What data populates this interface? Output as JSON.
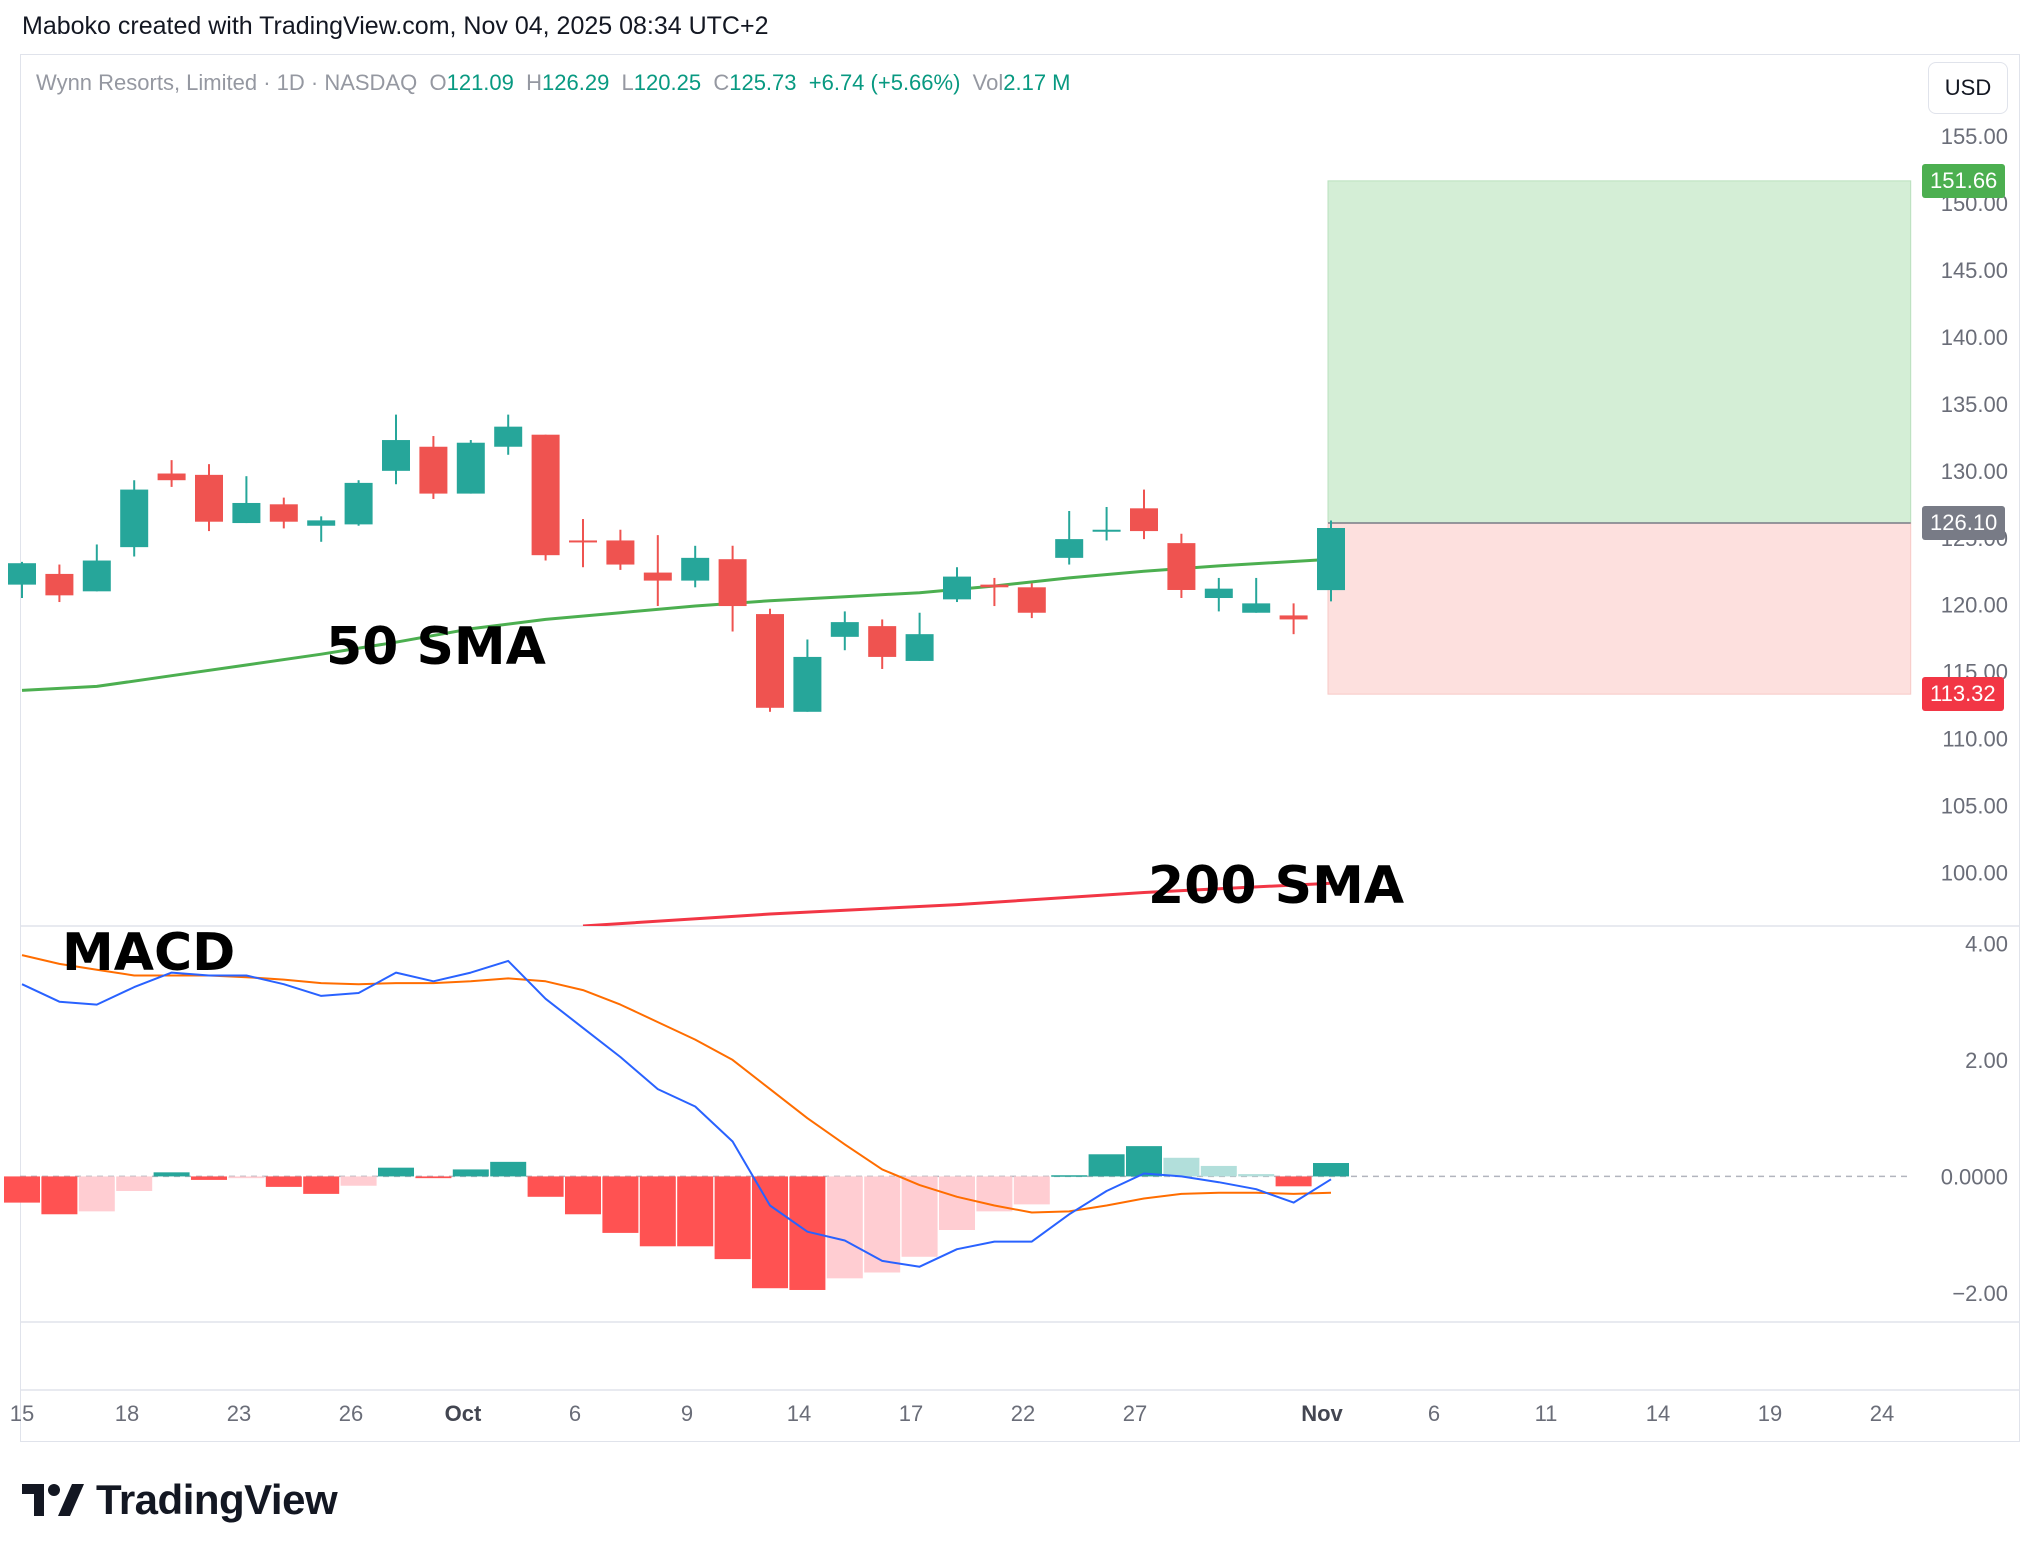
{
  "header": {
    "credit": "Maboko created with TradingView.com, Nov 04, 2025 08:34 UTC+2"
  },
  "legend": {
    "symbol": "Wynn Resorts, Limited · 1D · NASDAQ",
    "open_label": "O",
    "open": "121.09",
    "high_label": "H",
    "high": "126.29",
    "low_label": "L",
    "low": "120.25",
    "close_label": "C",
    "close": "125.73",
    "change": "+6.74 (+5.66%)",
    "vol_label": "Vol",
    "volume": "2.17 M"
  },
  "currency": "USD",
  "badges": {
    "target": "151.66",
    "current": "126.10",
    "stop": "113.32"
  },
  "annotations": {
    "sma50": "50 SMA",
    "sma200": "200 SMA",
    "macd": "MACD"
  },
  "brand": "TradingView",
  "colors": {
    "up": "#26a69a",
    "down": "#ef5350",
    "sma50": "#4caf50",
    "sma200": "#f23645",
    "macd_line": "#2962ff",
    "signal_line": "#ff6d00",
    "hist_up_strong": "#26a69a",
    "hist_up_weak": "#b2dfdb",
    "hist_down_strong": "#ff5252",
    "hist_down_weak": "#ffcdd2",
    "target_zone": "#d4eed6",
    "stop_zone": "#fde0de"
  },
  "chart_data": [
    {
      "type": "candlestick",
      "name": "price",
      "ylim": [
        96,
        158
      ],
      "y_ticks": [
        "155.00",
        "150.00",
        "145.00",
        "140.00",
        "135.00",
        "130.00",
        "125.00",
        "120.00",
        "115.00",
        "110.00",
        "105.00",
        "100.00"
      ],
      "x_ticks": [
        "15",
        "18",
        "23",
        "26",
        "Oct",
        "6",
        "9",
        "14",
        "17",
        "22",
        "27",
        "Nov",
        "6",
        "11",
        "14",
        "19",
        "24"
      ],
      "candles": [
        {
          "o": 121.5,
          "h": 123.2,
          "l": 120.5,
          "c": 123.1
        },
        {
          "o": 122.3,
          "h": 123.0,
          "l": 120.2,
          "c": 120.7
        },
        {
          "o": 121.0,
          "h": 124.5,
          "l": 121.0,
          "c": 123.3
        },
        {
          "o": 124.3,
          "h": 129.3,
          "l": 123.6,
          "c": 128.6
        },
        {
          "o": 129.8,
          "h": 130.8,
          "l": 128.8,
          "c": 129.3
        },
        {
          "o": 129.7,
          "h": 130.5,
          "l": 125.5,
          "c": 126.2
        },
        {
          "o": 126.1,
          "h": 129.6,
          "l": 126.1,
          "c": 127.6
        },
        {
          "o": 127.5,
          "h": 128.0,
          "l": 125.7,
          "c": 126.2
        },
        {
          "o": 125.9,
          "h": 126.6,
          "l": 124.7,
          "c": 126.3
        },
        {
          "o": 126.0,
          "h": 129.3,
          "l": 125.9,
          "c": 129.1
        },
        {
          "o": 130.0,
          "h": 134.2,
          "l": 129.0,
          "c": 132.3
        },
        {
          "o": 131.8,
          "h": 132.6,
          "l": 127.9,
          "c": 128.3
        },
        {
          "o": 128.3,
          "h": 132.3,
          "l": 128.3,
          "c": 132.1
        },
        {
          "o": 131.8,
          "h": 134.2,
          "l": 131.2,
          "c": 133.3
        },
        {
          "o": 132.7,
          "h": 132.7,
          "l": 123.3,
          "c": 123.7
        },
        {
          "o": 124.8,
          "h": 126.4,
          "l": 122.8,
          "c": 124.7
        },
        {
          "o": 124.8,
          "h": 125.6,
          "l": 122.6,
          "c": 123.0
        },
        {
          "o": 122.4,
          "h": 125.2,
          "l": 119.9,
          "c": 121.8
        },
        {
          "o": 121.8,
          "h": 124.4,
          "l": 121.3,
          "c": 123.5
        },
        {
          "o": 123.4,
          "h": 124.4,
          "l": 118.0,
          "c": 119.9
        },
        {
          "o": 119.3,
          "h": 119.7,
          "l": 112.0,
          "c": 112.3
        },
        {
          "o": 112.0,
          "h": 117.4,
          "l": 112.0,
          "c": 116.1
        },
        {
          "o": 117.6,
          "h": 119.5,
          "l": 116.6,
          "c": 118.7
        },
        {
          "o": 118.4,
          "h": 118.9,
          "l": 115.2,
          "c": 116.1
        },
        {
          "o": 115.8,
          "h": 119.4,
          "l": 115.8,
          "c": 117.8
        },
        {
          "o": 120.4,
          "h": 122.8,
          "l": 120.2,
          "c": 122.1
        },
        {
          "o": 121.5,
          "h": 122.0,
          "l": 119.9,
          "c": 121.3
        },
        {
          "o": 121.3,
          "h": 121.6,
          "l": 119.0,
          "c": 119.4
        },
        {
          "o": 123.5,
          "h": 127.0,
          "l": 123.0,
          "c": 124.9
        },
        {
          "o": 125.6,
          "h": 127.3,
          "l": 124.8,
          "c": 125.6
        },
        {
          "o": 127.2,
          "h": 128.6,
          "l": 124.9,
          "c": 125.5
        },
        {
          "o": 124.6,
          "h": 125.3,
          "l": 120.5,
          "c": 121.1
        },
        {
          "o": 120.5,
          "h": 122.0,
          "l": 119.5,
          "c": 121.2
        },
        {
          "o": 119.4,
          "h": 122.0,
          "l": 119.4,
          "c": 120.1
        },
        {
          "o": 119.2,
          "h": 120.1,
          "l": 117.8,
          "c": 118.9
        },
        {
          "o": 121.09,
          "h": 126.29,
          "l": 120.25,
          "c": 125.73
        }
      ],
      "sma50": [
        [
          0,
          113.6
        ],
        [
          2,
          113.9
        ],
        [
          4,
          114.7
        ],
        [
          6,
          115.5
        ],
        [
          8,
          116.3
        ],
        [
          10,
          117.2
        ],
        [
          12,
          118.2
        ],
        [
          14,
          118.9
        ],
        [
          16,
          119.4
        ],
        [
          18,
          119.9
        ],
        [
          20,
          120.3
        ],
        [
          22,
          120.6
        ],
        [
          24,
          120.9
        ],
        [
          26,
          121.4
        ],
        [
          28,
          122.0
        ],
        [
          30,
          122.5
        ],
        [
          32,
          122.9
        ],
        [
          35,
          123.4
        ]
      ],
      "sma200": [
        [
          15,
          96.0
        ],
        [
          20,
          96.9
        ],
        [
          25,
          97.6
        ],
        [
          30,
          98.5
        ],
        [
          35,
          99.2
        ]
      ],
      "position": {
        "start": 35,
        "end": 50.5,
        "entry": 126.1,
        "target": 151.66,
        "stop": 113.32
      }
    },
    {
      "type": "macd",
      "name": "MACD",
      "ylim": [
        -2.5,
        4.3
      ],
      "y_ticks": [
        "4.00",
        "2.00",
        "0.0000",
        "−2.00"
      ],
      "macd": [
        3.3,
        3.0,
        2.95,
        3.25,
        3.5,
        3.45,
        3.45,
        3.3,
        3.1,
        3.15,
        3.5,
        3.35,
        3.5,
        3.7,
        3.05,
        2.55,
        2.05,
        1.5,
        1.2,
        0.6,
        -0.5,
        -0.95,
        -1.1,
        -1.45,
        -1.55,
        -1.25,
        -1.12,
        -1.12,
        -0.65,
        -0.25,
        0.05,
        0.0,
        -0.1,
        -0.22,
        -0.45,
        -0.05
      ],
      "signal": [
        3.8,
        3.65,
        3.55,
        3.45,
        3.45,
        3.45,
        3.42,
        3.38,
        3.32,
        3.3,
        3.32,
        3.32,
        3.35,
        3.4,
        3.35,
        3.2,
        2.95,
        2.65,
        2.35,
        2.0,
        1.5,
        1.0,
        0.55,
        0.12,
        -0.15,
        -0.35,
        -0.5,
        -0.62,
        -0.6,
        -0.5,
        -0.38,
        -0.3,
        -0.28,
        -0.28,
        -0.3,
        -0.28
      ],
      "histogram": [
        -0.45,
        -0.65,
        -0.6,
        -0.25,
        0.07,
        -0.06,
        -0.03,
        -0.18,
        -0.3,
        -0.16,
        0.15,
        -0.03,
        0.12,
        0.25,
        -0.35,
        -0.65,
        -0.97,
        -1.2,
        -1.2,
        -1.42,
        -1.92,
        -1.95,
        -1.75,
        -1.65,
        -1.38,
        -0.92,
        -0.6,
        -0.48,
        0.02,
        0.38,
        0.52,
        0.32,
        0.18,
        0.04,
        -0.17,
        0.23
      ]
    }
  ]
}
